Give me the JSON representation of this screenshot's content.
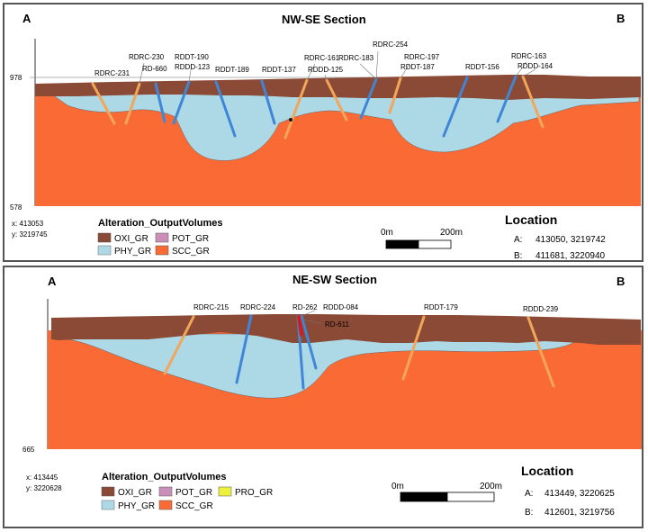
{
  "colors": {
    "OXI_GR": "#8b4a35",
    "POT_GR": "#c98fb8",
    "PRO_GR": "#ecf23c",
    "PHY_GR": "#add8e6",
    "SCC_GR": "#fa6a35",
    "hole_blue": "#3f86d6",
    "hole_orange": "#f2a65a",
    "hole_red": "#d21c1c"
  },
  "sections": [
    {
      "title": "NW-SE Section",
      "start_label": "A",
      "end_label": "B",
      "axis_top": "978",
      "axis_bottom": "578",
      "cursor_x": "x: 413053",
      "cursor_y": "y: 3219745",
      "legend_title": "Alteration_OutputVolumes",
      "legend": [
        {
          "code": "OXI_GR",
          "label": "OXI_GR"
        },
        {
          "code": "POT_GR",
          "label": "POT_GR"
        },
        {
          "code": "PHY_GR",
          "label": "PHY_GR"
        },
        {
          "code": "SCC_GR",
          "label": "SCC_GR"
        }
      ],
      "scale_start": "0m",
      "scale_end": "200m",
      "location_title": "Location",
      "location_a_label": "A:",
      "location_a": "413050, 3219742",
      "location_b_label": "B:",
      "location_b": "411681, 3220940",
      "holes": [
        "RDRC-231",
        "RDRC-230",
        "RD-660",
        "RDDT-190",
        "RDDD-123",
        "RDDT-189",
        "RDDT-137",
        "RDRC-161",
        "RDDD-125",
        "RDRC-183",
        "RDRC-254",
        "RDRC-197",
        "RDDT-187",
        "RDDT-156",
        "RDRC-163",
        "RDDD-164"
      ]
    },
    {
      "title": "NE-SW Section",
      "start_label": "A",
      "end_label": "B",
      "axis_bottom": "665",
      "cursor_x": "x: 413445",
      "cursor_y": "y: 3220628",
      "legend_title": "Alteration_OutputVolumes",
      "legend": [
        {
          "code": "OXI_GR",
          "label": "OXI_GR"
        },
        {
          "code": "POT_GR",
          "label": "POT_GR"
        },
        {
          "code": "PRO_GR",
          "label": "PRO_GR"
        },
        {
          "code": "PHY_GR",
          "label": "PHY_GR"
        },
        {
          "code": "SCC_GR",
          "label": "SCC_GR"
        }
      ],
      "scale_start": "0m",
      "scale_end": "200m",
      "location_title": "Location",
      "location_a_label": "A:",
      "location_a": "413449, 3220625",
      "location_b_label": "B:",
      "location_b": "412601, 3219756",
      "holes": [
        "RDRC-215",
        "RDRC-224",
        "RD-262",
        "RDDD-084",
        "RD-611",
        "RDDT-179",
        "RDDD-239"
      ]
    }
  ]
}
